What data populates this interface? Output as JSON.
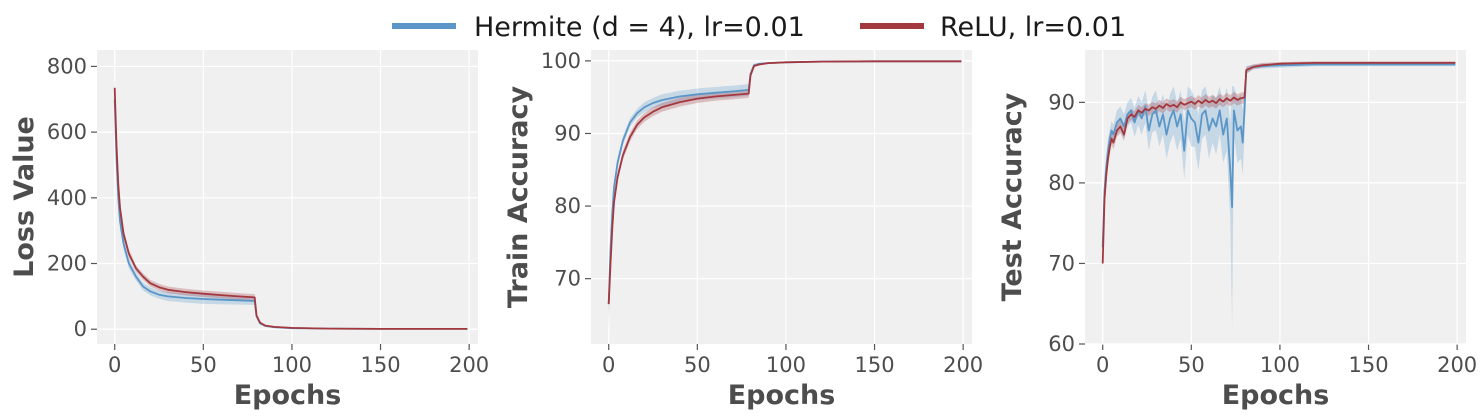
{
  "legend": {
    "placement": "top-center",
    "entries": [
      {
        "label": "Hermite (d = 4), lr=0.01",
        "color": "#5a96c8"
      },
      {
        "label": "ReLU, lr=0.01",
        "color": "#a3383f"
      }
    ]
  },
  "colors": {
    "panel_bg": "#f0f0f0",
    "grid": "#ffffff",
    "text": "#4d4d4d"
  },
  "chart_data": [
    {
      "type": "line",
      "xlabel": "Epochs",
      "ylabel": "Loss Value",
      "xlim": [
        -10,
        205
      ],
      "ylim": [
        -45,
        850
      ],
      "xticks": [
        0,
        50,
        100,
        150,
        200
      ],
      "yticks": [
        0,
        200,
        400,
        600,
        800
      ],
      "grid": true,
      "series": [
        {
          "name": "Hermite (d = 4), lr=0.01",
          "color": "#5a96c8",
          "x": [
            0,
            1,
            2,
            3,
            5,
            8,
            12,
            16,
            20,
            25,
            30,
            40,
            50,
            60,
            70,
            79,
            80,
            82,
            85,
            90,
            100,
            120,
            150,
            199
          ],
          "y": [
            700,
            520,
            400,
            330,
            260,
            200,
            160,
            130,
            115,
            105,
            100,
            95,
            92,
            90,
            88,
            86,
            40,
            18,
            10,
            6,
            3,
            2,
            1,
            1
          ],
          "band": [
            55,
            45,
            35,
            25,
            18,
            15,
            12,
            12,
            12,
            12,
            14,
            14,
            15,
            14,
            13,
            12,
            6,
            4,
            2,
            1,
            1,
            0,
            0,
            0
          ]
        },
        {
          "name": "ReLU, lr=0.01",
          "color": "#a3383f",
          "x": [
            0,
            1,
            2,
            3,
            5,
            8,
            12,
            16,
            20,
            25,
            30,
            40,
            50,
            60,
            70,
            79,
            80,
            82,
            85,
            90,
            100,
            120,
            150,
            199
          ],
          "y": [
            735,
            560,
            440,
            370,
            290,
            230,
            185,
            160,
            140,
            128,
            120,
            113,
            108,
            104,
            100,
            97,
            42,
            20,
            11,
            7,
            4,
            2,
            1,
            1
          ],
          "band": [
            30,
            28,
            25,
            20,
            15,
            12,
            10,
            10,
            10,
            10,
            10,
            10,
            10,
            10,
            10,
            10,
            5,
            3,
            2,
            1,
            1,
            0,
            0,
            0
          ]
        }
      ]
    },
    {
      "type": "line",
      "xlabel": "Epochs",
      "ylabel": "Train Accuracy",
      "xlim": [
        -10,
        205
      ],
      "ylim": [
        61,
        101.5
      ],
      "xticks": [
        0,
        50,
        100,
        150,
        200
      ],
      "yticks": [
        70,
        80,
        90,
        100
      ],
      "grid": true,
      "series": [
        {
          "name": "Hermite (d = 4), lr=0.01",
          "color": "#5a96c8",
          "x": [
            0,
            1,
            2,
            3,
            5,
            8,
            12,
            16,
            20,
            25,
            30,
            40,
            50,
            60,
            70,
            79,
            80,
            82,
            85,
            90,
            100,
            120,
            150,
            199
          ],
          "y": [
            66.5,
            74,
            79,
            82.5,
            86,
            89,
            91.5,
            92.8,
            93.6,
            94.2,
            94.6,
            95.1,
            95.4,
            95.6,
            95.8,
            96,
            98.2,
            99.4,
            99.6,
            99.7,
            99.8,
            99.9,
            99.95,
            99.95
          ],
          "band": [
            3.5,
            2,
            1.2,
            0.9,
            0.7,
            0.6,
            0.6,
            0.6,
            0.7,
            0.7,
            0.8,
            0.8,
            0.8,
            0.8,
            0.8,
            0.8,
            0.4,
            0.2,
            0.1,
            0.1,
            0.05,
            0.05,
            0.05,
            0.05
          ]
        },
        {
          "name": "ReLU, lr=0.01",
          "color": "#a3383f",
          "x": [
            0,
            1,
            2,
            3,
            5,
            8,
            12,
            16,
            20,
            25,
            30,
            40,
            50,
            60,
            70,
            79,
            80,
            82,
            85,
            90,
            100,
            120,
            150,
            199
          ],
          "y": [
            66.5,
            72,
            77,
            80.5,
            84,
            87,
            89.5,
            91.2,
            92.2,
            93,
            93.6,
            94.3,
            94.8,
            95.1,
            95.3,
            95.5,
            98,
            99.3,
            99.5,
            99.7,
            99.8,
            99.9,
            99.95,
            99.95
          ],
          "band": [
            1.5,
            1.2,
            1,
            0.8,
            0.7,
            0.6,
            0.6,
            0.6,
            0.6,
            0.6,
            0.6,
            0.6,
            0.6,
            0.6,
            0.6,
            0.6,
            0.3,
            0.2,
            0.1,
            0.1,
            0.05,
            0.05,
            0.05,
            0.05
          ]
        }
      ]
    },
    {
      "type": "line",
      "xlabel": "Epochs",
      "ylabel": "Test Accuracy",
      "xlim": [
        -10,
        205
      ],
      "ylim": [
        60,
        96.5
      ],
      "xticks": [
        0,
        50,
        100,
        150,
        200
      ],
      "yticks": [
        60,
        70,
        80,
        90
      ],
      "grid": true,
      "series": [
        {
          "name": "Hermite (d = 4), lr=0.01",
          "color": "#5a96c8",
          "x": [
            0,
            1,
            2,
            3,
            4,
            5,
            6,
            8,
            10,
            12,
            14,
            16,
            18,
            20,
            22,
            24,
            26,
            28,
            30,
            32,
            34,
            36,
            38,
            40,
            42,
            44,
            46,
            48,
            50,
            52,
            54,
            56,
            58,
            60,
            62,
            64,
            66,
            68,
            70,
            72,
            73,
            74,
            76,
            78,
            79,
            80,
            81,
            85,
            90,
            100,
            120,
            150,
            180,
            199
          ],
          "y": [
            72,
            79,
            82,
            84,
            85.5,
            86.5,
            86,
            87.5,
            88,
            87,
            88.5,
            89,
            87.5,
            89,
            88,
            89.5,
            86.5,
            88.5,
            89,
            87,
            88.5,
            86,
            88,
            89,
            87,
            88.5,
            84,
            89,
            88,
            87.5,
            85,
            88.5,
            89,
            86.5,
            88,
            87,
            89,
            86,
            88,
            81.5,
            77,
            89,
            86.5,
            87,
            85,
            89,
            94,
            94.4,
            94.5,
            94.6,
            94.7,
            94.7,
            94.7,
            94.7
          ],
          "band": [
            2,
            2,
            1.5,
            1.5,
            1.2,
            1.2,
            1.2,
            1.5,
            1.5,
            1.5,
            1.5,
            1.5,
            1.8,
            1.8,
            2,
            2,
            2.5,
            2.2,
            2.5,
            2.5,
            2.5,
            3,
            3,
            3,
            3,
            3,
            3.5,
            3,
            3.5,
            3,
            3.5,
            3,
            3,
            3.5,
            3,
            3.5,
            3,
            3.5,
            4,
            6,
            15,
            3,
            4,
            4,
            4,
            3,
            0.5,
            0.3,
            0.3,
            0.3,
            0.2,
            0.2,
            0.2,
            0.2
          ]
        },
        {
          "name": "ReLU, lr=0.01",
          "color": "#a3383f",
          "x": [
            0,
            1,
            2,
            3,
            4,
            5,
            6,
            8,
            10,
            12,
            14,
            16,
            18,
            20,
            22,
            24,
            26,
            28,
            30,
            32,
            34,
            36,
            38,
            40,
            42,
            44,
            46,
            48,
            50,
            52,
            54,
            56,
            58,
            60,
            62,
            64,
            66,
            68,
            70,
            72,
            74,
            76,
            78,
            80,
            81,
            85,
            90,
            100,
            120,
            150,
            180,
            199
          ],
          "y": [
            70,
            78,
            81,
            83,
            84.5,
            85.5,
            85,
            86.5,
            87,
            86,
            88,
            88.5,
            88.2,
            89,
            88.7,
            89.2,
            89,
            89.4,
            89.2,
            89.6,
            89.3,
            89.8,
            89.5,
            89.7,
            89.4,
            90,
            89.7,
            89.9,
            90.1,
            89.8,
            90.2,
            89.9,
            90.3,
            90,
            90.2,
            89.9,
            90.4,
            90.1,
            90.5,
            90.2,
            90.6,
            90.3,
            90.5,
            90.6,
            94,
            94.4,
            94.6,
            94.8,
            94.9,
            94.9,
            94.9,
            94.9
          ],
          "band": [
            1.5,
            1.5,
            1.2,
            1,
            1,
            0.8,
            0.8,
            0.8,
            0.8,
            0.8,
            0.7,
            0.7,
            0.7,
            0.7,
            0.7,
            0.7,
            0.7,
            0.7,
            0.7,
            0.7,
            0.7,
            0.7,
            0.7,
            0.7,
            0.7,
            0.7,
            0.7,
            0.7,
            0.7,
            0.7,
            0.7,
            0.7,
            0.7,
            0.7,
            0.7,
            0.7,
            0.7,
            0.7,
            0.7,
            0.7,
            0.7,
            0.7,
            0.7,
            0.7,
            0.4,
            0.3,
            0.3,
            0.2,
            0.2,
            0.2,
            0.2,
            0.2
          ]
        }
      ]
    }
  ]
}
